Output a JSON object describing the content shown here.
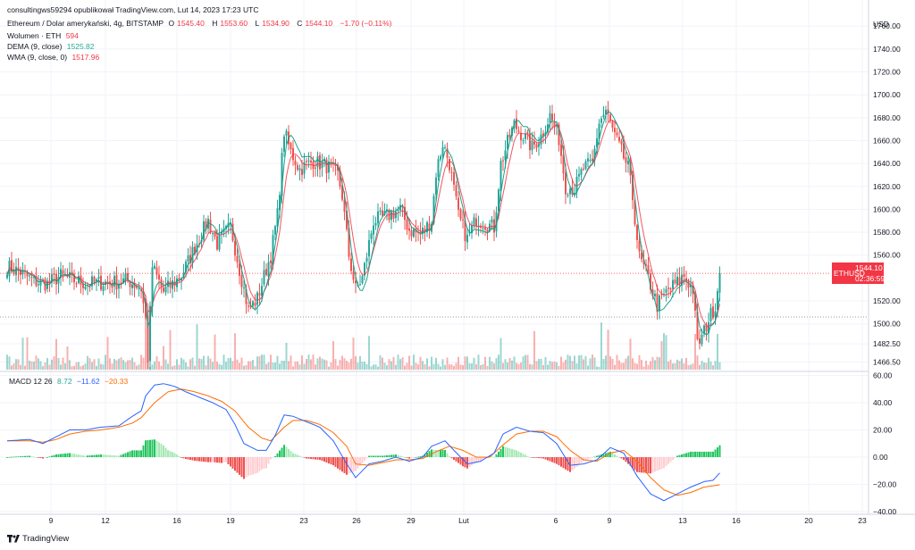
{
  "header": {
    "title": "consultingws59294 opublikował TradingView.com, Lut 14, 2023 17:23 UTC",
    "symbol": "Ethereum / Dolar amerykański, 4g, BITSTAMP",
    "open_label": "O",
    "open": "1545.40",
    "high_label": "H",
    "high": "1553.60",
    "low_label": "L",
    "low": "1534.90",
    "close_label": "C",
    "close": "1544.10",
    "change": "−1.70 (−0.11%)"
  },
  "legend": {
    "volume_label": "Wolumen · ETH",
    "volume_value": "594",
    "dema_label": "DEMA (9, close)",
    "dema_value": "1525.82",
    "wma_label": "WMA (9, close, 0)",
    "wma_value": "1517.96",
    "macd_label": "MACD 12 26",
    "macd_hist": "8.72",
    "macd_line": "−11.62",
    "macd_signal": "−20.33"
  },
  "price_tag": {
    "symbol": "ETHUSD",
    "price": "1544.10",
    "countdown": "02:36:59"
  },
  "footer": {
    "brand": "TradingView"
  },
  "colors": {
    "up": "#26a69a",
    "down": "#ef5350",
    "macd": "#2962ff",
    "signal": "#ff6d00",
    "dema": "#089981",
    "wma": "#f23645",
    "grid": "#f0f3fa",
    "axis_text": "#131722"
  },
  "chart_data": [
    {
      "type": "candlestick",
      "title": "Ethereum / Dolar amerykański, 4g, BITSTAMP",
      "currency_label": "USD",
      "y_ticks": [
        "1760.00",
        "1740.00",
        "1720.00",
        "1700.00",
        "1680.00",
        "1660.00",
        "1640.00",
        "1620.00",
        "1600.00",
        "1580.00",
        "1560.00",
        "1520.00",
        "1500.00",
        "1482.50",
        "1466.50"
      ],
      "x_ticks": [
        "9",
        "12",
        "16",
        "19",
        "23",
        "26",
        "29",
        "Lut",
        "6",
        "9",
        "13",
        "16",
        "20",
        "23"
      ],
      "ylim": [
        1460,
        1775
      ],
      "last_price": 1544.1,
      "reference_line": 1506,
      "waypoints": [
        [
          0,
          1550
        ],
        [
          6,
          1545
        ],
        [
          12,
          1537
        ],
        [
          18,
          1535
        ],
        [
          24,
          1542
        ],
        [
          30,
          1538
        ],
        [
          36,
          1535
        ],
        [
          42,
          1536
        ],
        [
          48,
          1536
        ],
        [
          54,
          1538
        ],
        [
          60,
          1531
        ],
        [
          62,
          1504
        ],
        [
          63,
          1470
        ],
        [
          65,
          1550
        ],
        [
          70,
          1528
        ],
        [
          78,
          1542
        ],
        [
          86,
          1575
        ],
        [
          90,
          1590
        ],
        [
          94,
          1570
        ],
        [
          100,
          1585
        ],
        [
          104,
          1548
        ],
        [
          108,
          1512
        ],
        [
          112,
          1522
        ],
        [
          116,
          1548
        ],
        [
          118,
          1560
        ],
        [
          121,
          1595
        ],
        [
          124,
          1668
        ],
        [
          127,
          1650
        ],
        [
          131,
          1635
        ],
        [
          137,
          1642
        ],
        [
          143,
          1638
        ],
        [
          148,
          1630
        ],
        [
          150,
          1612
        ],
        [
          153,
          1560
        ],
        [
          156,
          1530
        ],
        [
          159,
          1540
        ],
        [
          164,
          1590
        ],
        [
          170,
          1594
        ],
        [
          176,
          1600
        ],
        [
          180,
          1582
        ],
        [
          185,
          1578
        ],
        [
          190,
          1590
        ],
        [
          192,
          1632
        ],
        [
          195,
          1658
        ],
        [
          198,
          1640
        ],
        [
          202,
          1594
        ],
        [
          206,
          1574
        ],
        [
          210,
          1592
        ],
        [
          214,
          1588
        ],
        [
          218,
          1584
        ],
        [
          221,
          1640
        ],
        [
          225,
          1664
        ],
        [
          227,
          1674
        ],
        [
          231,
          1664
        ],
        [
          235,
          1654
        ],
        [
          239,
          1664
        ],
        [
          243,
          1682
        ],
        [
          247,
          1662
        ],
        [
          250,
          1620
        ],
        [
          254,
          1618
        ],
        [
          258,
          1636
        ],
        [
          262,
          1640
        ],
        [
          265,
          1676
        ],
        [
          268,
          1686
        ],
        [
          272,
          1664
        ],
        [
          275,
          1650
        ],
        [
          278,
          1636
        ],
        [
          280,
          1610
        ],
        [
          283,
          1558
        ],
        [
          287,
          1540
        ],
        [
          291,
          1516
        ],
        [
          296,
          1530
        ],
        [
          300,
          1536
        ],
        [
          303,
          1542
        ],
        [
          307,
          1530
        ],
        [
          309,
          1482
        ],
        [
          311,
          1488
        ],
        [
          314,
          1504
        ],
        [
          317,
          1516
        ],
        [
          319,
          1544
        ]
      ],
      "series": [
        {
          "name": "DEMA (9, close)",
          "last": 1525.82
        },
        {
          "name": "WMA (9, close, 0)",
          "last": 1517.96
        },
        {
          "name": "Wolumen · ETH",
          "last": 594
        }
      ]
    },
    {
      "type": "macd",
      "title": "MACD 12 26",
      "y_ticks": [
        "60.00",
        "40.00",
        "20.00",
        "0.00",
        "−20.00",
        "−40.00"
      ],
      "ylim": [
        -42,
        63
      ],
      "macd_waypoints": [
        [
          0,
          12
        ],
        [
          10,
          13
        ],
        [
          16,
          10
        ],
        [
          22,
          15
        ],
        [
          28,
          20
        ],
        [
          35,
          20
        ],
        [
          42,
          22
        ],
        [
          50,
          23
        ],
        [
          56,
          30
        ],
        [
          60,
          34
        ],
        [
          62,
          45
        ],
        [
          66,
          53
        ],
        [
          70,
          54
        ],
        [
          75,
          52
        ],
        [
          80,
          48
        ],
        [
          86,
          44
        ],
        [
          92,
          40
        ],
        [
          98,
          35
        ],
        [
          102,
          24
        ],
        [
          106,
          10
        ],
        [
          112,
          5
        ],
        [
          116,
          5
        ],
        [
          120,
          16
        ],
        [
          124,
          31
        ],
        [
          128,
          30
        ],
        [
          134,
          26
        ],
        [
          140,
          22
        ],
        [
          146,
          12
        ],
        [
          152,
          -5
        ],
        [
          156,
          -15
        ],
        [
          162,
          -5
        ],
        [
          168,
          -3
        ],
        [
          174,
          0
        ],
        [
          180,
          -3
        ],
        [
          186,
          0
        ],
        [
          190,
          8
        ],
        [
          196,
          12
        ],
        [
          200,
          5
        ],
        [
          206,
          -5
        ],
        [
          212,
          -3
        ],
        [
          218,
          3
        ],
        [
          222,
          17
        ],
        [
          228,
          22
        ],
        [
          234,
          19
        ],
        [
          240,
          18
        ],
        [
          246,
          10
        ],
        [
          252,
          -6
        ],
        [
          258,
          -5
        ],
        [
          264,
          -2
        ],
        [
          270,
          7
        ],
        [
          276,
          3
        ],
        [
          282,
          -14
        ],
        [
          288,
          -27
        ],
        [
          294,
          -32
        ],
        [
          300,
          -27
        ],
        [
          306,
          -22
        ],
        [
          312,
          -18
        ],
        [
          316,
          -17
        ],
        [
          319,
          -11.6
        ]
      ],
      "signal_waypoints": [
        [
          0,
          12
        ],
        [
          10,
          12
        ],
        [
          16,
          11
        ],
        [
          22,
          13
        ],
        [
          28,
          17
        ],
        [
          35,
          19
        ],
        [
          42,
          20
        ],
        [
          50,
          22
        ],
        [
          56,
          25
        ],
        [
          60,
          29
        ],
        [
          66,
          40
        ],
        [
          72,
          48
        ],
        [
          78,
          50
        ],
        [
          84,
          48
        ],
        [
          90,
          45
        ],
        [
          96,
          41
        ],
        [
          102,
          34
        ],
        [
          108,
          22
        ],
        [
          114,
          14
        ],
        [
          118,
          12
        ],
        [
          124,
          22
        ],
        [
          128,
          27
        ],
        [
          134,
          27
        ],
        [
          140,
          24
        ],
        [
          146,
          18
        ],
        [
          152,
          8
        ],
        [
          156,
          -5
        ],
        [
          162,
          -6
        ],
        [
          168,
          -4
        ],
        [
          174,
          -2
        ],
        [
          180,
          -2
        ],
        [
          186,
          -1
        ],
        [
          192,
          4
        ],
        [
          198,
          8
        ],
        [
          204,
          5
        ],
        [
          210,
          0
        ],
        [
          216,
          0
        ],
        [
          222,
          9
        ],
        [
          228,
          17
        ],
        [
          234,
          19
        ],
        [
          240,
          19
        ],
        [
          246,
          15
        ],
        [
          252,
          5
        ],
        [
          258,
          -2
        ],
        [
          264,
          -3
        ],
        [
          270,
          3
        ],
        [
          276,
          5
        ],
        [
          282,
          -3
        ],
        [
          288,
          -15
        ],
        [
          294,
          -24
        ],
        [
          300,
          -28
        ],
        [
          306,
          -26
        ],
        [
          312,
          -22
        ],
        [
          319,
          -20.33
        ]
      ],
      "last_hist": 8.72
    }
  ]
}
